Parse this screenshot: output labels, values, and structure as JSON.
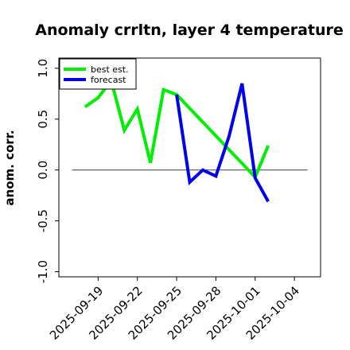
{
  "chart_data": {
    "type": "line",
    "title": "Anomaly crrltn, layer 4 temperature",
    "ylabel": "anom. corr.",
    "xlabel": "",
    "ylim": [
      -1.05,
      1.1
    ],
    "xlim": [
      "2025-09-16",
      "2025-10-06"
    ],
    "yticks": [
      {
        "value": 1.0,
        "label": "1.0"
      },
      {
        "value": 0.5,
        "label": "0.5"
      },
      {
        "value": 0.0,
        "label": "0.0"
      },
      {
        "value": -0.5,
        "label": "-0.5"
      },
      {
        "value": -1.0,
        "label": "-1.0"
      }
    ],
    "xticks": [
      {
        "date": "2025-09-19",
        "label": "2025-09-19",
        "color": "#000000"
      },
      {
        "date": "2025-09-22",
        "label": "2025-09-22",
        "color": "#000000"
      },
      {
        "date": "2025-09-25",
        "label": "2025-09-25",
        "color": "#2a8a2a"
      },
      {
        "date": "2025-09-28",
        "label": "2025-09-28",
        "color": "#000000"
      },
      {
        "date": "2025-10-01",
        "label": "2025-10-01",
        "color": "#000000"
      },
      {
        "date": "2025-10-04",
        "label": "2025-10-04",
        "color": "#000000"
      }
    ],
    "zero_line": 0,
    "legend": {
      "placement": "top-left"
    },
    "grid": false,
    "series": [
      {
        "name": "best est.",
        "color": "#00ee00",
        "points": [
          {
            "x": "2025-09-18",
            "y": 0.62
          },
          {
            "x": "2025-09-19",
            "y": 0.71
          },
          {
            "x": "2025-09-20",
            "y": 0.88
          },
          {
            "x": "2025-09-21",
            "y": 0.39
          },
          {
            "x": "2025-09-22",
            "y": 0.6
          },
          {
            "x": "2025-09-23",
            "y": 0.07
          },
          {
            "x": "2025-09-24",
            "y": 0.79
          },
          {
            "x": "2025-09-25",
            "y": 0.74
          },
          {
            "x": "2025-10-01",
            "y": -0.07
          },
          {
            "x": "2025-10-02",
            "y": 0.24
          }
        ]
      },
      {
        "name": "forecast",
        "color": "#0000ee",
        "points": [
          {
            "x": "2025-09-25",
            "y": 0.74
          },
          {
            "x": "2025-09-26",
            "y": -0.12
          },
          {
            "x": "2025-09-27",
            "y": 0.0
          },
          {
            "x": "2025-09-28",
            "y": -0.06
          },
          {
            "x": "2025-09-29",
            "y": 0.33
          },
          {
            "x": "2025-09-30",
            "y": 0.85
          },
          {
            "x": "2025-10-01",
            "y": -0.08
          },
          {
            "x": "2025-10-02",
            "y": -0.31
          }
        ]
      }
    ]
  }
}
